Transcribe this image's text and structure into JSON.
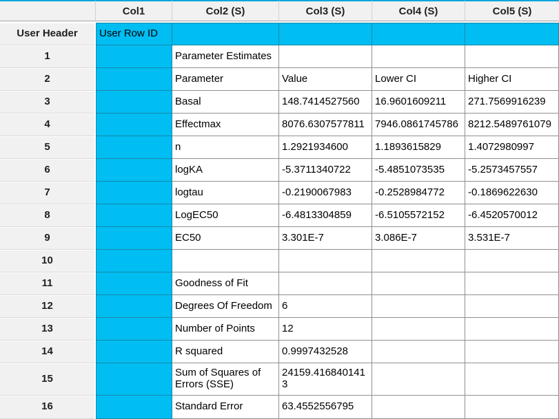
{
  "table": {
    "columns": [
      "",
      "Col1",
      "Col2 (S)",
      "Col3 (S)",
      "Col4 (S)",
      "Col5 (S)"
    ],
    "user_header": {
      "row_label": "User Header",
      "col1": "User Row ID"
    },
    "rows": [
      {
        "num": "1",
        "col2": "Parameter Estimates",
        "col3": "",
        "col4": "",
        "col5": ""
      },
      {
        "num": "2",
        "col2": "Parameter",
        "col3": "Value",
        "col4": "Lower CI",
        "col5": "Higher CI"
      },
      {
        "num": "3",
        "col2": "Basal",
        "col3": "148.7414527560",
        "col4": "16.9601609211",
        "col5": "271.7569916239"
      },
      {
        "num": "4",
        "col2": "Effectmax",
        "col3": "8076.6307577811",
        "col4": "7946.0861745786",
        "col5": "8212.5489761079"
      },
      {
        "num": "5",
        "col2": "n",
        "col3": "1.2921934600",
        "col4": "1.1893615829",
        "col5": "1.4072980997"
      },
      {
        "num": "6",
        "col2": "logKA",
        "col3": "-5.3711340722",
        "col4": "-5.4851073535",
        "col5": "-5.2573457557"
      },
      {
        "num": "7",
        "col2": "logtau",
        "col3": "-0.2190067983",
        "col4": "-0.2528984772",
        "col5": "-0.1869622630"
      },
      {
        "num": "8",
        "col2": "LogEC50",
        "col3": "-6.4813304859",
        "col4": "-6.5105572152",
        "col5": "-6.4520570012"
      },
      {
        "num": "9",
        "col2": "EC50",
        "col3": "3.301E-7",
        "col4": "3.086E-7",
        "col5": "3.531E-7"
      },
      {
        "num": "10",
        "col2": "",
        "col3": "",
        "col4": "",
        "col5": ""
      },
      {
        "num": "11",
        "col2": "Goodness of Fit",
        "col3": "",
        "col4": "",
        "col5": ""
      },
      {
        "num": "12",
        "col2": "Degrees Of Freedom",
        "col3": "6",
        "col4": "",
        "col5": ""
      },
      {
        "num": "13",
        "col2": "Number of Points",
        "col3": "12",
        "col4": "",
        "col5": ""
      },
      {
        "num": "14",
        "col2": "R squared",
        "col3": "0.9997432528",
        "col4": "",
        "col5": ""
      },
      {
        "num": "15",
        "col2": "Sum of Squares of Errors (SSE)",
        "col3": "24159.4168401413",
        "col4": "",
        "col5": ""
      },
      {
        "num": "16",
        "col2": "Standard Error",
        "col3": "63.4552556795",
        "col4": "",
        "col5": ""
      }
    ],
    "colors": {
      "cyan_fill": "#00bdf2",
      "cyan_border": "#1a87aa",
      "accent_top": "#00a6dd",
      "grid_border": "#8f8f8f",
      "header_bg": "#f1f1f1"
    }
  }
}
